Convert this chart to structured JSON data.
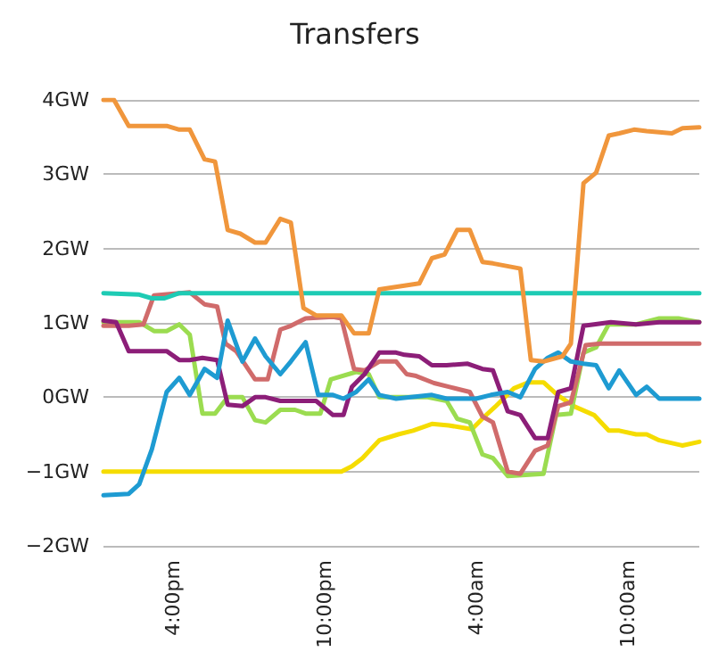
{
  "chart_data": {
    "type": "line",
    "title": "Transfers",
    "xlim": [
      "--01-01T13:15",
      "--01-02T12:50"
    ],
    "xticks": [
      {
        "value": "--01-01T16:00",
        "label": "4:00pm"
      },
      {
        "value": "--01-01T22:00",
        "label": "10:00pm"
      },
      {
        "value": "--01-02T04:00",
        "label": "4:00am"
      },
      {
        "value": "--01-02T10:00",
        "label": "10:00am"
      }
    ],
    "ylim": [
      -2,
      4
    ],
    "yticks": [
      {
        "value": -2,
        "label": "−2GW"
      },
      {
        "value": -1,
        "label": "−1GW"
      },
      {
        "value": 0,
        "label": "0GW"
      },
      {
        "value": 1,
        "label": "1GW"
      },
      {
        "value": 2,
        "label": "2GW"
      },
      {
        "value": 3,
        "label": "3GW"
      },
      {
        "value": 4,
        "label": "4GW"
      }
    ],
    "grid": "y",
    "marker": "none",
    "line_style": "solid",
    "series": [
      {
        "color": "#f5dc00",
        "x": [
          "--01-01T13:15",
          "--01-01T22:40",
          "--01-01T23:05",
          "--01-01T23:30",
          "--01-02T00:10",
          "--01-02T00:55",
          "--01-02T01:30",
          "--01-02T02:15",
          "--01-02T02:55",
          "--01-02T03:50",
          "--01-02T04:20",
          "--01-02T04:45",
          "--01-02T05:30",
          "--01-02T06:05",
          "--01-02T06:40",
          "--01-02T07:15",
          "--01-02T07:55",
          "--01-02T08:40",
          "--01-02T09:15",
          "--01-02T09:40",
          "--01-02T10:20",
          "--01-02T10:45",
          "--01-02T11:15",
          "--01-02T12:10",
          "--01-02T12:50"
        ],
        "values": [
          -1,
          -1,
          -0.93,
          -0.82,
          -0.58,
          -0.5,
          -0.45,
          -0.36,
          -0.38,
          -0.43,
          -0.26,
          -0.13,
          0.12,
          0.2,
          0.2,
          0.02,
          -0.13,
          -0.24,
          -0.45,
          -0.45,
          -0.5,
          -0.5,
          -0.58,
          -0.65,
          -0.6
        ]
      },
      {
        "color": "#9bdc50",
        "x": [
          "--01-01T13:15",
          "--01-01T14:40",
          "--01-01T15:15",
          "--01-01T15:45",
          "--01-01T16:15",
          "--01-01T16:40",
          "--01-01T17:10",
          "--01-01T17:40",
          "--01-01T18:10",
          "--01-01T18:45",
          "--01-01T19:15",
          "--01-01T19:40",
          "--01-01T20:15",
          "--01-01T20:50",
          "--01-01T21:15",
          "--01-01T21:50",
          "--01-01T22:15",
          "--01-01T23:15",
          "--01-01T23:45",
          "--01-02T00:10",
          "--01-02T02:05",
          "--01-02T02:50",
          "--01-02T03:15",
          "--01-02T03:45",
          "--01-02T04:15",
          "--01-02T04:40",
          "--01-02T05:15",
          "--01-02T06:40",
          "--01-02T07:10",
          "--01-02T07:45",
          "--01-02T08:15",
          "--01-02T08:45",
          "--01-02T09:15",
          "--01-02T10:20",
          "--01-02T11:15",
          "--01-02T12:00",
          "--01-02T12:50"
        ],
        "values": [
          1.01,
          1.01,
          0.89,
          0.89,
          0.98,
          0.84,
          -0.22,
          -0.22,
          0,
          0,
          -0.31,
          -0.34,
          -0.17,
          -0.17,
          -0.22,
          -0.22,
          0.24,
          0.34,
          0.31,
          0,
          0,
          -0.05,
          -0.29,
          -0.34,
          -0.77,
          -0.82,
          -1.06,
          -1.03,
          -0.24,
          -0.22,
          0.6,
          0.67,
          0.98,
          0.98,
          1.06,
          1.06,
          1.01
        ]
      },
      {
        "color": "#d06b6b",
        "x": [
          "--01-01T13:15",
          "--01-01T14:15",
          "--01-01T14:50",
          "--01-01T15:15",
          "--01-01T16:40",
          "--01-01T17:15",
          "--01-01T17:45",
          "--01-01T18:05",
          "--01-01T18:30",
          "--01-01T19:15",
          "--01-01T19:45",
          "--01-01T20:15",
          "--01-01T20:40",
          "--01-01T21:15",
          "--01-01T22:20",
          "--01-01T22:40",
          "--01-01T23:10",
          "--01-01T23:35",
          "--01-02T00:10",
          "--01-02T00:50",
          "--01-02T01:15",
          "--01-02T01:35",
          "--01-02T02:20",
          "--01-02T02:55",
          "--01-02T03:45",
          "--01-02T04:15",
          "--01-02T04:40",
          "--01-02T05:15",
          "--01-02T05:45",
          "--01-02T06:20",
          "--01-02T06:50",
          "--01-02T07:15",
          "--01-02T07:45",
          "--01-02T08:20",
          "--01-02T08:55",
          "--01-02T12:50"
        ],
        "values": [
          0.96,
          0.96,
          0.98,
          1.37,
          1.41,
          1.25,
          1.22,
          0.72,
          0.62,
          0.24,
          0.24,
          0.91,
          0.96,
          1.06,
          1.08,
          1.06,
          0.38,
          0.36,
          0.48,
          0.48,
          0.31,
          0.29,
          0.19,
          0.14,
          0.07,
          -0.26,
          -0.34,
          -1,
          -1.03,
          -0.72,
          -0.65,
          -0.12,
          -0.07,
          0.7,
          0.72,
          0.72
        ]
      },
      {
        "color": "#8c1e78",
        "x": [
          "--01-01T13:15",
          "--01-01T13:45",
          "--01-01T14:15",
          "--01-01T15:45",
          "--01-01T16:15",
          "--01-01T16:40",
          "--01-01T17:10",
          "--01-01T17:45",
          "--01-01T18:10",
          "--01-01T18:45",
          "--01-01T19:15",
          "--01-01T19:40",
          "--01-01T20:15",
          "--01-01T21:40",
          "--01-01T22:20",
          "--01-01T22:45",
          "--01-01T23:05",
          "--01-01T23:35",
          "--01-02T00:10",
          "--01-02T00:50",
          "--01-02T01:10",
          "--01-02T01:45",
          "--01-02T02:15",
          "--01-02T02:50",
          "--01-02T03:40",
          "--01-02T04:15",
          "--01-02T04:40",
          "--01-02T05:15",
          "--01-02T05:45",
          "--01-02T06:20",
          "--01-02T06:50",
          "--01-02T07:15",
          "--01-02T07:45",
          "--01-02T08:15",
          "--01-02T08:40",
          "--01-02T09:20",
          "--01-02T10:20",
          "--01-02T11:15",
          "--01-02T12:50"
        ],
        "values": [
          1.03,
          1.01,
          0.62,
          0.62,
          0.5,
          0.5,
          0.53,
          0.5,
          -0.1,
          -0.12,
          0,
          0,
          -0.05,
          -0.05,
          -0.24,
          -0.24,
          0.14,
          0.31,
          0.6,
          0.6,
          0.57,
          0.55,
          0.43,
          0.43,
          0.45,
          0.38,
          0.36,
          -0.19,
          -0.24,
          -0.55,
          -0.55,
          0.07,
          0.12,
          0.96,
          0.98,
          1.01,
          0.98,
          1.01,
          1.01
        ]
      },
      {
        "color": "#1e9bd2",
        "x": [
          "--01-01T13:15",
          "--01-01T14:15",
          "--01-01T14:40",
          "--01-01T15:10",
          "--01-01T15:45",
          "--01-01T16:15",
          "--01-01T16:40",
          "--01-01T17:15",
          "--01-01T17:45",
          "--01-01T18:10",
          "--01-01T18:45",
          "--01-01T19:15",
          "--01-01T19:40",
          "--01-01T20:15",
          "--01-01T20:40",
          "--01-01T21:15",
          "--01-01T21:45",
          "--01-01T22:20",
          "--01-01T22:45",
          "--01-01T23:15",
          "--01-01T23:45",
          "--01-02T00:10",
          "--01-02T00:50",
          "--01-02T02:15",
          "--01-02T02:50",
          "--01-02T04:00",
          "--01-02T04:35",
          "--01-02T05:15",
          "--01-02T05:45",
          "--01-02T06:20",
          "--01-02T06:50",
          "--01-02T07:15",
          "--01-02T07:45",
          "--01-02T08:15",
          "--01-02T08:45",
          "--01-02T09:15",
          "--01-02T09:40",
          "--01-02T10:20",
          "--01-02T10:45",
          "--01-02T11:15",
          "--01-02T12:50"
        ],
        "values": [
          -1.32,
          -1.3,
          -1.17,
          -0.7,
          0.07,
          0.26,
          0.03,
          0.38,
          0.26,
          1.03,
          0.48,
          0.79,
          0.55,
          0.31,
          0.48,
          0.74,
          0.03,
          0.03,
          -0.02,
          0.07,
          0.24,
          0.03,
          -0.02,
          0.03,
          -0.02,
          -0.02,
          0.03,
          0.07,
          0,
          0.38,
          0.53,
          0.6,
          0.48,
          0.45,
          0.43,
          0.12,
          0.36,
          0.03,
          0.14,
          -0.02,
          -0.02
        ]
      },
      {
        "color": "#1ecbb4",
        "x": [
          "--01-01T13:15",
          "--01-01T14:40",
          "--01-01T15:10",
          "--01-01T15:40",
          "--01-01T16:15",
          "--01-02T12:50"
        ],
        "values": [
          1.4,
          1.38,
          1.33,
          1.33,
          1.4,
          1.4
        ]
      },
      {
        "color": "#f0963c",
        "x": [
          "--01-01T13:15",
          "--01-01T13:40",
          "--01-01T14:15",
          "--01-01T15:45",
          "--01-01T16:15",
          "--01-01T16:40",
          "--01-01T17:15",
          "--01-01T17:40",
          "--01-01T18:10",
          "--01-01T18:40",
          "--01-01T19:15",
          "--01-01T19:40",
          "--01-01T20:15",
          "--01-01T20:40",
          "--01-01T21:10",
          "--01-01T21:40",
          "--01-01T22:40",
          "--01-01T23:10",
          "--01-01T23:45",
          "--01-02T00:10",
          "--01-02T01:45",
          "--01-02T02:15",
          "--01-02T02:45",
          "--01-02T03:15",
          "--01-02T03:45",
          "--01-02T04:15",
          "--01-02T04:40",
          "--01-02T05:45",
          "--01-02T06:10",
          "--01-02T06:40",
          "--01-02T07:25",
          "--01-02T07:45",
          "--01-02T08:15",
          "--01-02T08:45",
          "--01-02T09:15",
          "--01-02T09:40",
          "--01-02T10:15",
          "--01-02T10:45",
          "--01-02T11:45",
          "--01-02T12:10",
          "--01-02T12:50"
        ],
        "values": [
          4,
          4,
          3.65,
          3.65,
          3.6,
          3.6,
          3.2,
          3.17,
          2.25,
          2.2,
          2.08,
          2.08,
          2.4,
          2.35,
          1.2,
          1.1,
          1.1,
          0.86,
          0.86,
          1.45,
          1.53,
          1.87,
          1.92,
          2.25,
          2.25,
          1.82,
          1.8,
          1.73,
          0.5,
          0.48,
          0.55,
          0.72,
          2.88,
          3.02,
          3.52,
          3.55,
          3.6,
          3.58,
          3.55,
          3.62,
          3.63
        ]
      }
    ]
  }
}
